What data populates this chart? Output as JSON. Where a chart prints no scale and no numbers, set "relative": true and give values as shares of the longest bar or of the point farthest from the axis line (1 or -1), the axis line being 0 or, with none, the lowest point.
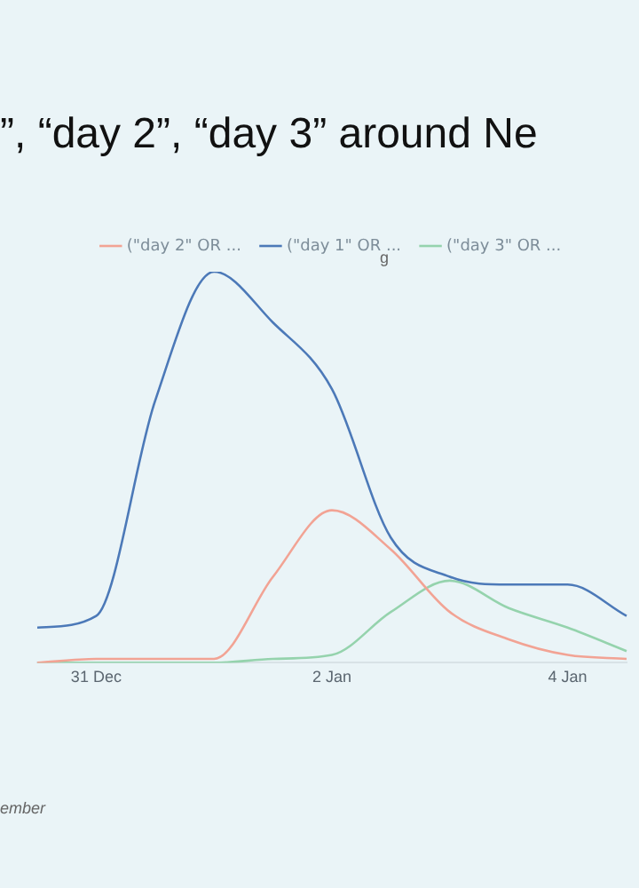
{
  "chart_data": {
    "type": "line",
    "title": "”, “day 2”, “day 3” around Ne",
    "relative": true,
    "categories": [
      null,
      "31 Dec",
      null,
      null,
      null,
      "2 Jan",
      null,
      null,
      null,
      "4 Jan",
      null
    ],
    "series": [
      {
        "name": "(\"day 2\" OR ...",
        "color": "#f2a394",
        "values": [
          0,
          0.01,
          0.01,
          0.01,
          0.22,
          0.39,
          0.29,
          0.13,
          0.06,
          0.02,
          0.01
        ]
      },
      {
        "name": "(\"day 1\" OR ...",
        "color": "#4c79b8",
        "values": [
          0.09,
          0.12,
          0.67,
          1.0,
          0.87,
          0.7,
          0.32,
          0.22,
          0.2,
          0.2,
          0.12
        ]
      },
      {
        "name": "(\"day 3\" OR ...",
        "color": "#95d3ad",
        "values": [
          0,
          0,
          0,
          0,
          0.01,
          0.02,
          0.13,
          0.21,
          0.14,
          0.09,
          0.03
        ]
      }
    ],
    "legend": "top",
    "marker": "none",
    "line_style": "solid",
    "grid": false,
    "annotations": [
      "g",
      "ember"
    ]
  }
}
